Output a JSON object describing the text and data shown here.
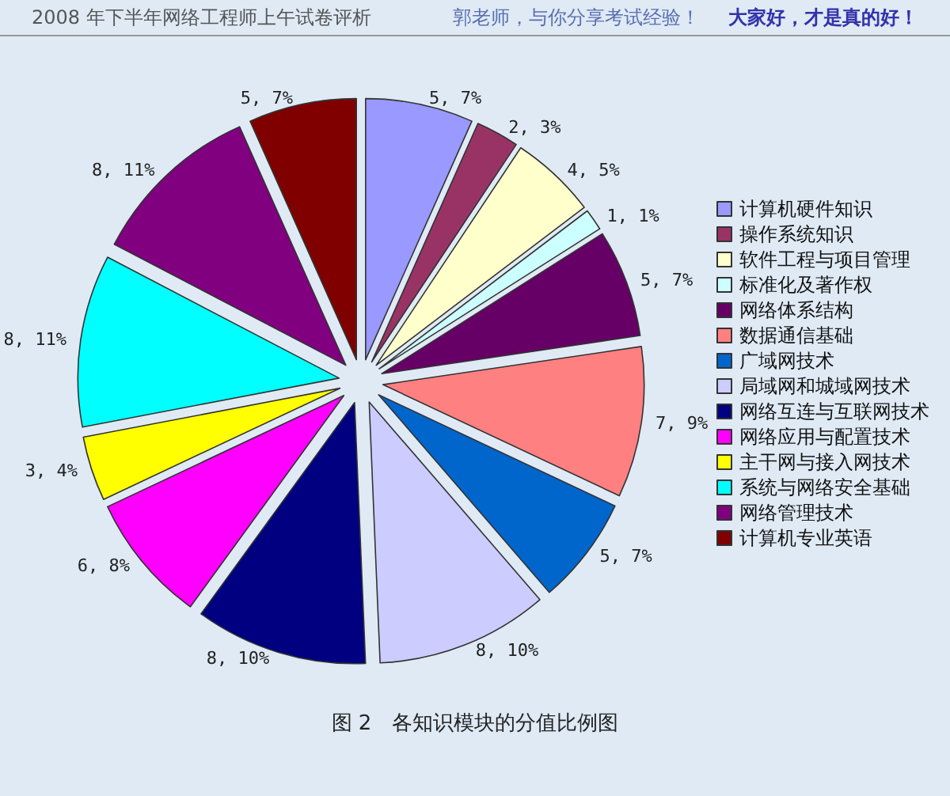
{
  "chart_data": {
    "type": "pie",
    "title": "2008 年下半年网络工程师上午试卷评析",
    "annotations": [
      "郭老师，与你分享考试经验！",
      "大家好，才是真的好！",
      "图 2　各知识模块的分值比例图"
    ],
    "categories": [
      "计算机硬件知识",
      "操作系统知识",
      "软件工程与项目管理",
      "标准化及著作权",
      "网络体系结构",
      "数据通信基础",
      "广域网技术",
      "局域网和城域网技术",
      "网络互连与互联网技术",
      "网络应用与配置技术",
      "主干网与接入网技术",
      "系统与网络安全基础",
      "网络管理技术",
      "计算机专业英语"
    ],
    "values": [
      5,
      2,
      4,
      1,
      5,
      7,
      5,
      8,
      8,
      6,
      3,
      8,
      8,
      5
    ],
    "value_labels": [
      "5, 7%",
      "2, 3%",
      "4, 5%",
      "1, 1%",
      "5, 7%",
      "7, 9%",
      "5, 7%",
      "8, 10%",
      "8, 10%",
      "6, 8%",
      "3, 4%",
      "8, 11%",
      "8, 11%",
      "5, 7%"
    ],
    "colors": [
      "#9999ff",
      "#993366",
      "#ffffcc",
      "#ccffff",
      "#660066",
      "#ff8080",
      "#0066cc",
      "#ccccff",
      "#000080",
      "#ff00ff",
      "#ffff00",
      "#00ffff",
      "#800080",
      "#800000"
    ],
    "legend": "right"
  }
}
